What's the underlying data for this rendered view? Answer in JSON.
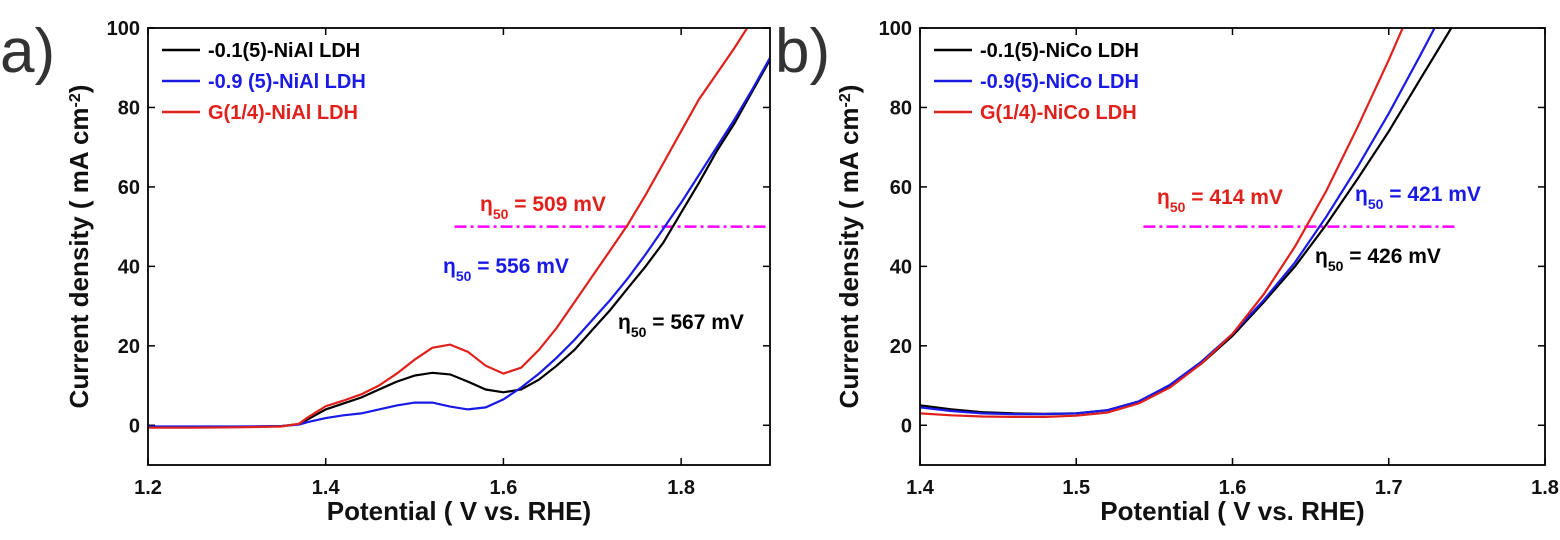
{
  "chart_data": [
    {
      "type": "line",
      "panel_label": "a)",
      "xlabel": "Potential ( V vs. RHE)",
      "ylabel": [
        "Current density ( mA cm",
        "-2",
        ")"
      ],
      "xlim": [
        1.2,
        1.9
      ],
      "xticks": [
        1.2,
        1.4,
        1.6,
        1.8
      ],
      "ylim": [
        -10,
        100
      ],
      "yticks": [
        0,
        20,
        40,
        60,
        80,
        100
      ],
      "x": [
        1.2,
        1.25,
        1.3,
        1.35,
        1.37,
        1.38,
        1.4,
        1.42,
        1.44,
        1.46,
        1.48,
        1.5,
        1.52,
        1.54,
        1.56,
        1.58,
        1.6,
        1.62,
        1.64,
        1.66,
        1.68,
        1.7,
        1.72,
        1.74,
        1.76,
        1.78,
        1.8,
        1.82,
        1.84,
        1.86,
        1.88,
        1.9
      ],
      "series": [
        {
          "name": "-0.1(5)-NiAl LDH",
          "color": "#000000",
          "values": [
            -0.5,
            -0.5,
            -0.4,
            -0.2,
            0.3,
            1.5,
            4,
            5.5,
            7,
            9,
            11,
            12.5,
            13.2,
            12.8,
            11,
            9,
            8.3,
            9,
            11.5,
            15,
            19,
            24,
            29,
            34.5,
            40,
            46,
            53.5,
            61,
            69,
            76,
            84,
            92
          ]
        },
        {
          "name": "-0.9 (5)-NiAl LDH",
          "color": "#1a1ae6",
          "values": [
            -0.3,
            -0.3,
            -0.3,
            -0.2,
            0.2,
            0.8,
            1.8,
            2.5,
            3,
            4,
            5,
            5.7,
            5.7,
            4.7,
            4,
            4.5,
            6.5,
            9.5,
            13,
            17,
            21.5,
            26.5,
            31.5,
            37,
            43,
            49.5,
            56,
            63,
            70,
            77,
            84.5,
            92.5
          ]
        },
        {
          "name": "G(1/4)-NiAl LDH",
          "color": "#e0201b",
          "values": [
            -0.6,
            -0.6,
            -0.5,
            -0.3,
            0.4,
            2,
            4.8,
            6.2,
            7.8,
            10,
            13,
            16.5,
            19.5,
            20.3,
            18.5,
            15,
            13,
            14.5,
            19,
            24.5,
            31,
            37.5,
            44,
            50.5,
            58,
            66,
            74,
            82,
            88.5,
            95,
            102,
            null
          ]
        }
      ],
      "hline": {
        "y": 50,
        "x": [
          1.545,
          1.9
        ],
        "color": "#ff00ff"
      },
      "annotations": [
        {
          "parts": [
            "η",
            "50",
            " = 509 mV"
          ],
          "color": "#e0201b"
        },
        {
          "parts": [
            "η",
            "50",
            " = 556 mV"
          ],
          "color": "#1a1ae6"
        },
        {
          "parts": [
            "η",
            "50",
            " = 567 mV"
          ],
          "color": "#000000"
        }
      ]
    },
    {
      "type": "line",
      "panel_label": "b)",
      "xlabel": "Potential ( V vs. RHE)",
      "ylabel": [
        "Current density ( mA cm",
        "-2",
        ")"
      ],
      "xlim": [
        1.4,
        1.8
      ],
      "xticks": [
        1.4,
        1.5,
        1.6,
        1.7,
        1.8
      ],
      "ylim": [
        -10,
        100
      ],
      "yticks": [
        0,
        20,
        40,
        60,
        80,
        100
      ],
      "x": [
        1.4,
        1.42,
        1.44,
        1.46,
        1.48,
        1.5,
        1.52,
        1.54,
        1.56,
        1.58,
        1.6,
        1.62,
        1.64,
        1.66,
        1.68,
        1.7,
        1.72,
        1.74
      ],
      "series": [
        {
          "name": "-0.1(5)-NiCo LDH",
          "color": "#000000",
          "values": [
            5,
            4,
            3.3,
            3,
            2.9,
            3,
            3.8,
            6,
            10,
            15.5,
            22.5,
            31,
            40,
            50.5,
            62,
            74,
            87,
            100
          ]
        },
        {
          "name": "-0.9(5)-NiCo LDH",
          "color": "#1a1ae6",
          "values": [
            4.5,
            3.6,
            3,
            2.8,
            2.8,
            3,
            3.8,
            6,
            10.2,
            16,
            23,
            31.5,
            41,
            52.5,
            65,
            78.5,
            93,
            108
          ]
        },
        {
          "name": "G(1/4)-NiCo LDH",
          "color": "#e0201b",
          "values": [
            3,
            2.5,
            2.2,
            2.1,
            2.1,
            2.4,
            3.2,
            5.5,
            9.5,
            15.5,
            23,
            33,
            45,
            59,
            75,
            92,
            110,
            null
          ]
        }
      ],
      "hline": {
        "y": 50,
        "x": [
          1.543,
          1.743
        ],
        "color": "#ff00ff"
      },
      "annotations": [
        {
          "parts": [
            "η",
            "50",
            " = 414 mV"
          ],
          "color": "#e0201b"
        },
        {
          "parts": [
            "η",
            "50",
            " = 421 mV"
          ],
          "color": "#1a1ae6"
        },
        {
          "parts": [
            "η",
            "50",
            " = 426 mV"
          ],
          "color": "#000000"
        }
      ]
    }
  ]
}
